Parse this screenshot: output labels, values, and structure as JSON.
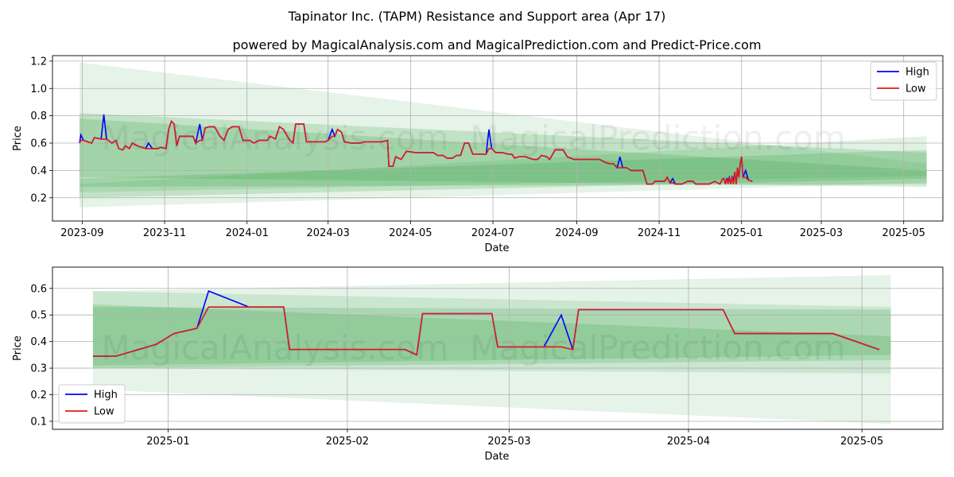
{
  "title": "Tapinator Inc. (TAPM) Resistance and Support area (Apr 17)",
  "subtitle": "powered by MagicalAnalysis.com and MagicalPrediction.com and Predict-Price.com",
  "watermarks": [
    "MagicalAnalysis.com",
    "MagicalPrediction.com"
  ],
  "colors": {
    "high": "#0000ff",
    "low": "#e31a1c",
    "band": "#2e9e3e",
    "grid": "#b0b0b0"
  },
  "chart_data": [
    {
      "type": "line",
      "xlabel": "Date",
      "ylabel": "Price",
      "ylim": [
        0.03,
        1.24
      ],
      "xlim": [
        "2023-08-10",
        "2025-05-30"
      ],
      "x_ticks": [
        "2023-09",
        "2023-11",
        "2024-01",
        "2024-03",
        "2024-05",
        "2024-07",
        "2024-09",
        "2024-11",
        "2025-01",
        "2025-03",
        "2025-05"
      ],
      "y_ticks": [
        "0.2",
        "0.4",
        "0.6",
        "0.8",
        "1.0",
        "1.2"
      ],
      "grid": true,
      "legend": "top-right",
      "bands": [
        {
          "start": "2023-08-30",
          "end": "2025-05-18",
          "upper": [
            1.19,
            0.45
          ],
          "lower": [
            0.13,
            0.31
          ],
          "opacity": 0.12
        },
        {
          "start": "2023-08-30",
          "end": "2025-05-18",
          "upper": [
            0.82,
            0.53
          ],
          "lower": [
            0.2,
            0.34
          ],
          "opacity": 0.2
        },
        {
          "start": "2023-08-30",
          "end": "2025-05-18",
          "upper": [
            0.78,
            0.4
          ],
          "lower": [
            0.35,
            0.28
          ],
          "opacity": 0.2
        },
        {
          "start": "2023-08-30",
          "end": "2025-05-18",
          "upper": [
            0.3,
            0.65
          ],
          "lower": [
            0.24,
            0.36
          ],
          "opacity": 0.14
        },
        {
          "start": "2023-08-30",
          "end": "2025-05-18",
          "upper": [
            0.34,
            0.55
          ],
          "lower": [
            0.28,
            0.3
          ],
          "opacity": 0.2
        }
      ],
      "series": [
        {
          "name": "High",
          "points": [
            [
              "2023-08-30",
              0.6
            ],
            [
              "2023-08-31",
              0.66
            ],
            [
              "2023-09-02",
              0.62
            ],
            [
              "2023-09-08",
              0.6
            ],
            [
              "2023-09-10",
              0.64
            ],
            [
              "2023-09-15",
              0.63
            ],
            [
              "2023-09-17",
              0.81
            ],
            [
              "2023-09-19",
              0.63
            ],
            [
              "2023-09-23",
              0.6
            ],
            [
              "2023-09-26",
              0.62
            ],
            [
              "2023-09-28",
              0.56
            ],
            [
              "2023-10-01",
              0.55
            ],
            [
              "2023-10-03",
              0.58
            ],
            [
              "2023-10-06",
              0.56
            ],
            [
              "2023-10-08",
              0.6
            ],
            [
              "2023-10-12",
              0.58
            ],
            [
              "2023-10-18",
              0.56
            ],
            [
              "2023-10-20",
              0.6
            ],
            [
              "2023-10-23",
              0.56
            ],
            [
              "2023-10-27",
              0.56
            ],
            [
              "2023-10-29",
              0.57
            ],
            [
              "2023-11-02",
              0.56
            ],
            [
              "2023-11-04",
              0.7
            ],
            [
              "2023-11-06",
              0.76
            ],
            [
              "2023-11-08",
              0.74
            ],
            [
              "2023-11-10",
              0.58
            ],
            [
              "2023-11-12",
              0.65
            ],
            [
              "2023-11-18",
              0.65
            ],
            [
              "2023-11-22",
              0.65
            ],
            [
              "2023-11-24",
              0.6
            ],
            [
              "2023-11-27",
              0.74
            ],
            [
              "2023-11-29",
              0.62
            ],
            [
              "2023-12-01",
              0.71
            ],
            [
              "2023-12-04",
              0.72
            ],
            [
              "2023-12-08",
              0.72
            ],
            [
              "2023-12-12",
              0.65
            ],
            [
              "2023-12-15",
              0.62
            ],
            [
              "2023-12-18",
              0.7
            ],
            [
              "2023-12-21",
              0.72
            ],
            [
              "2023-12-26",
              0.72
            ],
            [
              "2023-12-29",
              0.62
            ],
            [
              "2024-01-03",
              0.62
            ],
            [
              "2024-01-06",
              0.6
            ],
            [
              "2024-01-10",
              0.62
            ],
            [
              "2024-01-16",
              0.62
            ],
            [
              "2024-01-18",
              0.65
            ],
            [
              "2024-01-22",
              0.63
            ],
            [
              "2024-01-25",
              0.72
            ],
            [
              "2024-01-28",
              0.7
            ],
            [
              "2024-02-01",
              0.63
            ],
            [
              "2024-02-04",
              0.6
            ],
            [
              "2024-02-06",
              0.74
            ],
            [
              "2024-02-12",
              0.74
            ],
            [
              "2024-02-14",
              0.61
            ],
            [
              "2024-02-21",
              0.61
            ],
            [
              "2024-02-25",
              0.61
            ],
            [
              "2024-02-28",
              0.61
            ],
            [
              "2024-03-01",
              0.62
            ],
            [
              "2024-03-04",
              0.7
            ],
            [
              "2024-03-06",
              0.65
            ],
            [
              "2024-03-08",
              0.7
            ],
            [
              "2024-03-11",
              0.68
            ],
            [
              "2024-03-13",
              0.61
            ],
            [
              "2024-03-18",
              0.6
            ],
            [
              "2024-03-25",
              0.6
            ],
            [
              "2024-03-28",
              0.61
            ],
            [
              "2024-04-03",
              0.61
            ],
            [
              "2024-04-08",
              0.61
            ],
            [
              "2024-04-10",
              0.61
            ],
            [
              "2024-04-14",
              0.62
            ],
            [
              "2024-04-15",
              0.43
            ],
            [
              "2024-04-18",
              0.43
            ],
            [
              "2024-04-20",
              0.5
            ],
            [
              "2024-04-24",
              0.48
            ],
            [
              "2024-04-28",
              0.54
            ],
            [
              "2024-05-05",
              0.53
            ],
            [
              "2024-05-12",
              0.53
            ],
            [
              "2024-05-18",
              0.53
            ],
            [
              "2024-05-21",
              0.51
            ],
            [
              "2024-05-25",
              0.51
            ],
            [
              "2024-05-28",
              0.49
            ],
            [
              "2024-06-01",
              0.49
            ],
            [
              "2024-06-04",
              0.51
            ],
            [
              "2024-06-07",
              0.51
            ],
            [
              "2024-06-10",
              0.6
            ],
            [
              "2024-06-13",
              0.6
            ],
            [
              "2024-06-16",
              0.52
            ],
            [
              "2024-06-21",
              0.52
            ],
            [
              "2024-06-26",
              0.52
            ],
            [
              "2024-06-28",
              0.7
            ],
            [
              "2024-06-30",
              0.56
            ],
            [
              "2024-07-03",
              0.53
            ],
            [
              "2024-07-08",
              0.53
            ],
            [
              "2024-07-12",
              0.52
            ],
            [
              "2024-07-15",
              0.52
            ],
            [
              "2024-07-17",
              0.49
            ],
            [
              "2024-07-20",
              0.5
            ],
            [
              "2024-07-25",
              0.5
            ],
            [
              "2024-07-28",
              0.49
            ],
            [
              "2024-07-31",
              0.48
            ],
            [
              "2024-08-03",
              0.48
            ],
            [
              "2024-08-06",
              0.51
            ],
            [
              "2024-08-10",
              0.5
            ],
            [
              "2024-08-12",
              0.48
            ],
            [
              "2024-08-16",
              0.55
            ],
            [
              "2024-08-22",
              0.55
            ],
            [
              "2024-08-25",
              0.5
            ],
            [
              "2024-08-30",
              0.48
            ],
            [
              "2024-09-05",
              0.48
            ],
            [
              "2024-09-10",
              0.48
            ],
            [
              "2024-09-15",
              0.48
            ],
            [
              "2024-09-18",
              0.48
            ],
            [
              "2024-09-22",
              0.46
            ],
            [
              "2024-09-25",
              0.45
            ],
            [
              "2024-09-28",
              0.45
            ],
            [
              "2024-10-01",
              0.42
            ],
            [
              "2024-10-03",
              0.5
            ],
            [
              "2024-10-05",
              0.42
            ],
            [
              "2024-10-08",
              0.42
            ],
            [
              "2024-10-11",
              0.4
            ],
            [
              "2024-10-14",
              0.4
            ],
            [
              "2024-10-20",
              0.4
            ],
            [
              "2024-10-23",
              0.3
            ],
            [
              "2024-10-27",
              0.3
            ],
            [
              "2024-10-29",
              0.32
            ],
            [
              "2024-11-03",
              0.32
            ],
            [
              "2024-11-05",
              0.32
            ],
            [
              "2024-11-07",
              0.35
            ],
            [
              "2024-11-09",
              0.31
            ],
            [
              "2024-11-11",
              0.34
            ],
            [
              "2024-11-13",
              0.3
            ],
            [
              "2024-11-18",
              0.3
            ],
            [
              "2024-11-22",
              0.32
            ],
            [
              "2024-11-26",
              0.32
            ],
            [
              "2024-11-28",
              0.3
            ],
            [
              "2024-12-01",
              0.3
            ],
            [
              "2024-12-05",
              0.3
            ],
            [
              "2024-12-08",
              0.3
            ],
            [
              "2024-12-12",
              0.32
            ],
            [
              "2024-12-16",
              0.3
            ],
            [
              "2024-12-20",
              0.3
            ],
            [
              "2024-12-22",
              0.33
            ],
            [
              "2024-12-24",
              0.3
            ],
            [
              "2024-12-26",
              0.33
            ],
            [
              "2024-12-28",
              0.3
            ],
            [
              "2024-12-30",
              0.35
            ],
            [
              "2025-01-02",
              0.35
            ],
            [
              "2025-01-04",
              0.4
            ],
            [
              "2025-01-06",
              0.33
            ],
            [
              "2025-01-09",
              0.32
            ],
            [
              "2024-12-18",
              0.34
            ],
            [
              "2024-12-19",
              0.34
            ],
            [
              "2024-12-21",
              0.34
            ],
            [
              "2024-12-23",
              0.35
            ],
            [
              "2024-12-25",
              0.35
            ],
            [
              "2024-12-27",
              0.39
            ],
            [
              "2024-12-29",
              0.42
            ],
            [
              "2024-12-31",
              0.45
            ],
            [
              "2025-01-01",
              0.5
            ]
          ]
        },
        {
          "name": "Low",
          "points": []
        }
      ]
    },
    {
      "type": "line",
      "xlabel": "Date",
      "ylabel": "Price",
      "ylim": [
        0.07,
        0.68
      ],
      "xlim": [
        "2024-12-12",
        "2025-05-15"
      ],
      "x_ticks": [
        "2025-01",
        "2025-02",
        "2025-03",
        "2025-04",
        "2025-05"
      ],
      "y_ticks": [
        "0.1",
        "0.2",
        "0.3",
        "0.4",
        "0.5",
        "0.6"
      ],
      "grid": true,
      "legend": "bottom-left",
      "bands": [
        {
          "start": "2024-12-19",
          "end": "2025-05-06",
          "upper": [
            0.59,
            0.65
          ],
          "lower": [
            0.22,
            0.09
          ],
          "opacity": 0.12
        },
        {
          "start": "2024-12-19",
          "end": "2025-05-06",
          "upper": [
            0.59,
            0.53
          ],
          "lower": [
            0.3,
            0.28
          ],
          "opacity": 0.14
        },
        {
          "start": "2024-12-19",
          "end": "2025-05-06",
          "upper": [
            0.54,
            0.42
          ],
          "lower": [
            0.3,
            0.33
          ],
          "opacity": 0.2
        },
        {
          "start": "2024-12-19",
          "end": "2025-05-06",
          "upper": [
            0.53,
            0.52
          ],
          "lower": [
            0.31,
            0.35
          ],
          "opacity": 0.2
        }
      ],
      "series": [
        {
          "name": "High",
          "points": [
            [
              "2024-12-19",
              0.345
            ],
            [
              "2024-12-23",
              0.345
            ],
            [
              "2024-12-30",
              0.39
            ],
            [
              "2025-01-02",
              0.43
            ],
            [
              "2025-01-06",
              0.45
            ],
            [
              "2025-01-08",
              0.59
            ],
            [
              "2025-01-15",
              0.53
            ],
            [
              "2025-01-21",
              0.53
            ],
            [
              "2025-01-22",
              0.37
            ],
            [
              "2025-01-29",
              0.37
            ],
            [
              "2025-02-05",
              0.37
            ],
            [
              "2025-02-11",
              0.37
            ],
            [
              "2025-02-13",
              0.35
            ],
            [
              "2025-02-14",
              0.505
            ],
            [
              "2025-02-26",
              0.505
            ],
            [
              "2025-02-27",
              0.38
            ],
            [
              "2025-03-03",
              0.38
            ],
            [
              "2025-03-07",
              0.38
            ],
            [
              "2025-03-10",
              0.5
            ],
            [
              "2025-03-12",
              0.37
            ],
            [
              "2025-03-13",
              0.52
            ],
            [
              "2025-03-18",
              0.52
            ],
            [
              "2025-03-21",
              0.52
            ],
            [
              "2025-03-26",
              0.52
            ],
            [
              "2025-04-07",
              0.52
            ],
            [
              "2025-04-09",
              0.43
            ],
            [
              "2025-04-12",
              0.43
            ],
            [
              "2025-04-18",
              0.43
            ],
            [
              "2025-04-26",
              0.43
            ],
            [
              "2025-05-04",
              0.37
            ]
          ]
        },
        {
          "name": "Low",
          "points": []
        }
      ]
    }
  ]
}
